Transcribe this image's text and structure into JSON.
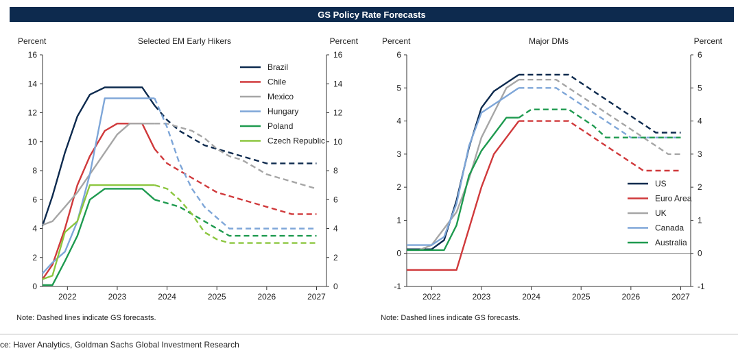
{
  "title": "GS Policy Rate Forecasts",
  "source": "ce: Haver Analytics, Goldman Sachs Global Investment Research",
  "chart_data": [
    {
      "type": "line",
      "title": "Selected EM Early Hikers",
      "ylabel_left": "Percent",
      "ylabel_right": "Percent",
      "ylim": [
        0,
        16
      ],
      "yticks": [
        0,
        2,
        4,
        6,
        8,
        10,
        12,
        14,
        16
      ],
      "xlim": [
        2021.5,
        2027.2
      ],
      "xticks": [
        2022,
        2023,
        2024,
        2025,
        2026,
        2027
      ],
      "xtick_labels": [
        "2022",
        "2023",
        "2024",
        "2025",
        "2026",
        "2027"
      ],
      "legend_position": "top-right",
      "note": "Note: Dashed lines indicate GS forecasts.",
      "series": [
        {
          "name": "Brazil",
          "color": "#0d2a4e",
          "x": [
            2021.5,
            2021.7,
            2021.95,
            2022.2,
            2022.45,
            2022.75,
            2023.0,
            2023.25,
            2023.5,
            2023.75,
            2024.0,
            2024.25,
            2024.5,
            2024.75,
            2025.0,
            2025.25,
            2025.5,
            2025.75,
            2026.0,
            2026.25,
            2026.5,
            2026.75,
            2027.0
          ],
          "y": [
            4.2,
            6.25,
            9.25,
            11.75,
            13.25,
            13.75,
            13.75,
            13.75,
            13.75,
            12.5,
            11.5,
            10.75,
            10.25,
            9.75,
            9.5,
            9.25,
            9.0,
            8.75,
            8.5,
            8.5,
            8.5,
            8.5,
            8.5
          ],
          "forecast_from_x": 2023.75
        },
        {
          "name": "Chile",
          "color": "#d0393b",
          "x": [
            2021.5,
            2021.7,
            2021.95,
            2022.2,
            2022.45,
            2022.75,
            2023.0,
            2023.25,
            2023.5,
            2023.75,
            2024.0,
            2024.25,
            2024.5,
            2024.75,
            2025.0,
            2025.25,
            2025.5,
            2025.75,
            2026.0,
            2026.25,
            2026.5,
            2026.75,
            2027.0
          ],
          "y": [
            0.5,
            1.5,
            4.0,
            7.0,
            9.0,
            10.75,
            11.25,
            11.25,
            11.25,
            9.5,
            8.5,
            8.0,
            7.5,
            7.0,
            6.5,
            6.25,
            6.0,
            5.75,
            5.5,
            5.25,
            5.0,
            5.0,
            5.0
          ],
          "forecast_from_x": 2023.75
        },
        {
          "name": "Mexico",
          "color": "#a6a6a6",
          "x": [
            2021.5,
            2021.7,
            2021.95,
            2022.2,
            2022.45,
            2022.75,
            2023.0,
            2023.25,
            2023.5,
            2023.75,
            2024.0,
            2024.25,
            2024.5,
            2024.75,
            2025.0,
            2025.25,
            2025.5,
            2025.75,
            2026.0,
            2026.25,
            2026.5,
            2026.75,
            2027.0
          ],
          "y": [
            4.25,
            4.5,
            5.5,
            6.5,
            7.75,
            9.25,
            10.5,
            11.25,
            11.25,
            11.25,
            11.25,
            11.0,
            10.75,
            10.25,
            9.5,
            9.0,
            8.75,
            8.25,
            7.75,
            7.5,
            7.25,
            7.0,
            6.75
          ],
          "forecast_from_x": 2023.75
        },
        {
          "name": "Hungary",
          "color": "#7ea6d8",
          "x": [
            2021.5,
            2021.7,
            2021.95,
            2022.2,
            2022.45,
            2022.75,
            2023.0,
            2023.25,
            2023.5,
            2023.75,
            2024.0,
            2024.25,
            2024.5,
            2024.75,
            2025.0,
            2025.25,
            2025.5,
            2025.75,
            2026.0,
            2026.25,
            2026.5,
            2026.75,
            2027.0
          ],
          "y": [
            0.9,
            1.65,
            2.4,
            4.5,
            7.75,
            13.0,
            13.0,
            13.0,
            13.0,
            13.0,
            11.0,
            8.5,
            6.75,
            5.5,
            4.75,
            4.0,
            4.0,
            4.0,
            4.0,
            4.0,
            4.0,
            4.0,
            4.0
          ],
          "forecast_from_x": 2023.75
        },
        {
          "name": "Poland",
          "color": "#1e9a4f",
          "x": [
            2021.5,
            2021.7,
            2021.95,
            2022.2,
            2022.45,
            2022.75,
            2023.0,
            2023.25,
            2023.5,
            2023.75,
            2024.0,
            2024.25,
            2024.5,
            2024.75,
            2025.0,
            2025.25,
            2025.5,
            2025.75,
            2026.0,
            2026.25,
            2026.5,
            2026.75,
            2027.0
          ],
          "y": [
            0.1,
            0.1,
            1.75,
            3.5,
            6.0,
            6.75,
            6.75,
            6.75,
            6.75,
            6.0,
            5.75,
            5.5,
            5.0,
            4.5,
            4.0,
            3.5,
            3.5,
            3.5,
            3.5,
            3.5,
            3.5,
            3.5,
            3.5
          ],
          "forecast_from_x": 2023.75
        },
        {
          "name": "Czech Republic",
          "color": "#8cc63f",
          "x": [
            2021.5,
            2021.7,
            2021.95,
            2022.2,
            2022.45,
            2022.75,
            2023.0,
            2023.25,
            2023.5,
            2023.75,
            2024.0,
            2024.25,
            2024.5,
            2024.75,
            2025.0,
            2025.25,
            2025.5,
            2025.75,
            2026.0,
            2026.25,
            2026.5,
            2026.75,
            2027.0
          ],
          "y": [
            0.5,
            0.75,
            3.75,
            4.5,
            7.0,
            7.0,
            7.0,
            7.0,
            7.0,
            7.0,
            6.75,
            6.0,
            5.0,
            3.75,
            3.25,
            3.0,
            3.0,
            3.0,
            3.0,
            3.0,
            3.0,
            3.0,
            3.0
          ],
          "forecast_from_x": 2023.75
        }
      ]
    },
    {
      "type": "line",
      "title": "Major DMs",
      "ylabel_left": "Percent",
      "ylabel_right": "Percent",
      "ylim": [
        -1,
        6
      ],
      "yticks": [
        -1,
        0,
        1,
        2,
        3,
        4,
        5,
        6
      ],
      "xlim": [
        2021.5,
        2027.2
      ],
      "xticks": [
        2022,
        2023,
        2024,
        2025,
        2026,
        2027
      ],
      "xtick_labels": [
        "2022",
        "2023",
        "2024",
        "2025",
        "2026",
        "2027"
      ],
      "zero_line": true,
      "legend_position": "bottom-right",
      "note": "Note: Dashed lines indicate GS forecasts.",
      "series": [
        {
          "name": "US",
          "color": "#0d2a4e",
          "x": [
            2021.5,
            2021.75,
            2022.0,
            2022.25,
            2022.5,
            2022.75,
            2023.0,
            2023.25,
            2023.5,
            2023.75,
            2024.0,
            2024.25,
            2024.5,
            2024.75,
            2025.0,
            2025.25,
            2025.5,
            2025.75,
            2026.0,
            2026.25,
            2026.5,
            2026.75,
            2027.0
          ],
          "y": [
            0.125,
            0.125,
            0.125,
            0.4,
            1.6,
            3.2,
            4.4,
            4.9,
            5.15,
            5.4,
            5.4,
            5.4,
            5.4,
            5.4,
            5.15,
            4.9,
            4.65,
            4.4,
            4.15,
            3.9,
            3.65,
            3.65,
            3.65
          ],
          "forecast_from_x": 2023.75
        },
        {
          "name": "Euro Area",
          "color": "#d0393b",
          "x": [
            2021.5,
            2021.75,
            2022.0,
            2022.25,
            2022.5,
            2022.75,
            2023.0,
            2023.25,
            2023.5,
            2023.75,
            2024.0,
            2024.25,
            2024.5,
            2024.75,
            2025.0,
            2025.25,
            2025.5,
            2025.75,
            2026.0,
            2026.25,
            2026.5,
            2026.75,
            2027.0
          ],
          "y": [
            -0.5,
            -0.5,
            -0.5,
            -0.5,
            -0.5,
            0.75,
            2.0,
            3.0,
            3.5,
            4.0,
            4.0,
            4.0,
            4.0,
            4.0,
            3.75,
            3.5,
            3.25,
            3.0,
            2.75,
            2.5,
            2.5,
            2.5,
            2.5
          ],
          "forecast_from_x": 2023.75
        },
        {
          "name": "UK",
          "color": "#a6a6a6",
          "x": [
            2021.5,
            2021.75,
            2022.0,
            2022.25,
            2022.5,
            2022.75,
            2023.0,
            2023.25,
            2023.5,
            2023.75,
            2024.0,
            2024.25,
            2024.5,
            2024.75,
            2025.0,
            2025.25,
            2025.5,
            2025.75,
            2026.0,
            2026.25,
            2026.5,
            2026.75,
            2027.0
          ],
          "y": [
            0.1,
            0.1,
            0.25,
            0.75,
            1.25,
            2.25,
            3.5,
            4.25,
            5.0,
            5.25,
            5.25,
            5.25,
            5.25,
            5.0,
            4.75,
            4.5,
            4.25,
            4.0,
            3.75,
            3.5,
            3.25,
            3.0,
            3.0
          ],
          "forecast_from_x": 2023.75
        },
        {
          "name": "Canada",
          "color": "#7ea6d8",
          "x": [
            2021.5,
            2021.75,
            2022.0,
            2022.25,
            2022.5,
            2022.75,
            2023.0,
            2023.25,
            2023.5,
            2023.75,
            2024.0,
            2024.25,
            2024.5,
            2024.75,
            2025.0,
            2025.25,
            2025.5,
            2025.75,
            2026.0,
            2026.25,
            2026.5,
            2026.75,
            2027.0
          ],
          "y": [
            0.25,
            0.25,
            0.25,
            0.5,
            1.5,
            3.25,
            4.25,
            4.5,
            4.75,
            5.0,
            5.0,
            5.0,
            5.0,
            4.75,
            4.5,
            4.25,
            4.0,
            3.75,
            3.5,
            3.5,
            3.5,
            3.5,
            3.5
          ],
          "forecast_from_x": 2023.75
        },
        {
          "name": "Australia",
          "color": "#1e9a4f",
          "x": [
            2021.5,
            2021.75,
            2022.0,
            2022.25,
            2022.5,
            2022.75,
            2023.0,
            2023.25,
            2023.5,
            2023.75,
            2024.0,
            2024.25,
            2024.5,
            2024.75,
            2025.0,
            2025.25,
            2025.5,
            2025.75,
            2026.0,
            2026.25,
            2026.5,
            2026.75,
            2027.0
          ],
          "y": [
            0.1,
            0.1,
            0.1,
            0.1,
            0.85,
            2.35,
            3.1,
            3.6,
            4.1,
            4.1,
            4.35,
            4.35,
            4.35,
            4.35,
            4.1,
            3.85,
            3.5,
            3.5,
            3.5,
            3.5,
            3.5,
            3.5,
            3.5
          ],
          "forecast_from_x": 2023.75
        }
      ]
    }
  ]
}
